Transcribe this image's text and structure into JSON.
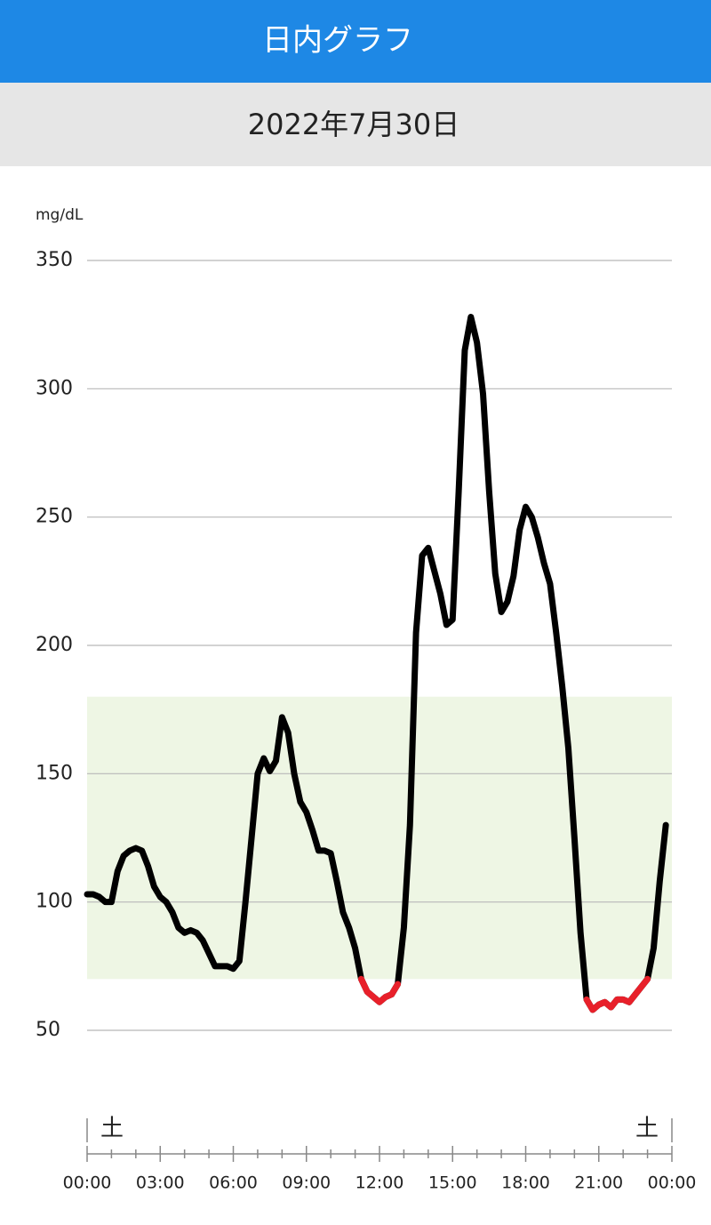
{
  "header": {
    "title": "日内グラフ",
    "date": "2022年7月30日"
  },
  "chart_data": {
    "type": "line",
    "y_label": "mg/dL",
    "x": [
      0,
      15,
      30,
      45,
      60,
      75,
      90,
      105,
      120,
      135,
      150,
      165,
      180,
      195,
      210,
      225,
      240,
      255,
      270,
      285,
      300,
      315,
      330,
      345,
      360,
      375,
      390,
      405,
      420,
      435,
      450,
      465,
      480,
      495,
      510,
      525,
      540,
      555,
      570,
      585,
      600,
      615,
      630,
      645,
      660,
      675,
      690,
      705,
      720,
      735,
      750,
      765,
      780,
      795,
      810,
      825,
      840,
      855,
      870,
      885,
      900,
      915,
      930,
      945,
      960,
      975,
      990,
      1005,
      1020,
      1035,
      1050,
      1065,
      1080,
      1095,
      1110,
      1125,
      1140,
      1155,
      1170,
      1185,
      1200,
      1215,
      1230,
      1245,
      1260,
      1275,
      1290,
      1305,
      1320,
      1335,
      1350,
      1365,
      1380,
      1395,
      1410,
      1425
    ],
    "series": [
      {
        "color": "#000000",
        "low_color": "#e8202a",
        "values": [
          103,
          103,
          102,
          100,
          100,
          112,
          118,
          120,
          121,
          120,
          114,
          106,
          102,
          100,
          96,
          90,
          88,
          89,
          88,
          85,
          80,
          75,
          75,
          75,
          74,
          77,
          100,
          125,
          150,
          156,
          151,
          155,
          172,
          166,
          150,
          139,
          135,
          128,
          120,
          120,
          119,
          108,
          96,
          90,
          82,
          70,
          65,
          63,
          61,
          63,
          64,
          68,
          90,
          130,
          205,
          235,
          238,
          229,
          220,
          208,
          210,
          260,
          315,
          328,
          318,
          298,
          260,
          228,
          213,
          217,
          227,
          245,
          254,
          250,
          242,
          232,
          224,
          205,
          184,
          160,
          125,
          88,
          62,
          58,
          60,
          61,
          59,
          62,
          62,
          61,
          64,
          67,
          70,
          82,
          108,
          130
        ]
      }
    ],
    "xlim": [
      0,
      1440
    ],
    "xticks": [
      {
        "value": 0,
        "label": "00:00"
      },
      {
        "value": 180,
        "label": "03:00"
      },
      {
        "value": 360,
        "label": "06:00"
      },
      {
        "value": 540,
        "label": "09:00"
      },
      {
        "value": 720,
        "label": "12:00"
      },
      {
        "value": 900,
        "label": "15:00"
      },
      {
        "value": 1080,
        "label": "18:00"
      },
      {
        "value": 1260,
        "label": "21:00"
      },
      {
        "value": 1440,
        "label": "00:00"
      }
    ],
    "ylim": [
      50,
      350
    ],
    "yticks": [
      50,
      100,
      150,
      200,
      250,
      300,
      350
    ],
    "grid": true,
    "target_range": [
      70,
      180
    ],
    "target_color": "#eef6e4",
    "day_labels": [
      "土",
      "土"
    ]
  }
}
